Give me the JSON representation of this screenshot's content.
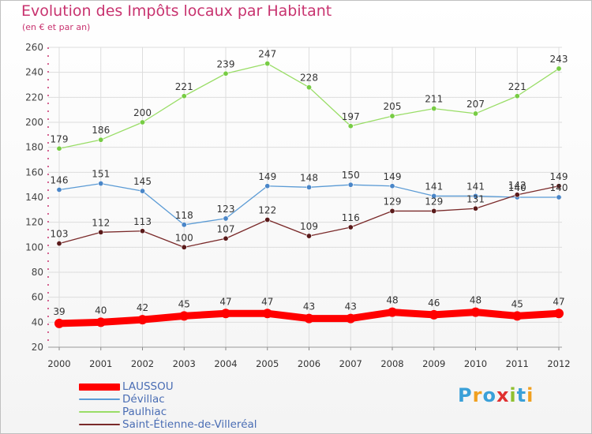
{
  "header": {
    "title": "Evolution des Impôts locaux par Habitant",
    "subtitle": "(en € et par an)"
  },
  "logo": {
    "letters": [
      "P",
      "r",
      "o",
      "x",
      "i",
      "t",
      "i"
    ],
    "colors": [
      "#3aa0d8",
      "#f0a020",
      "#3aa0d8",
      "#e03030",
      "#90c030",
      "#3aa0d8",
      "#f0a020"
    ]
  },
  "colors": {
    "title": "#c8336f",
    "axis": "#c8336f",
    "grid": "#dddddd",
    "legend_text": "#4a6db4"
  },
  "chart_data": {
    "type": "line",
    "title": "Evolution des Impôts locaux par Habitant",
    "subtitle": "(en € et par an)",
    "xlabel": "",
    "ylabel": "",
    "x": [
      "2000",
      "2001",
      "2002",
      "2003",
      "2004",
      "2005",
      "2006",
      "2007",
      "2008",
      "2009",
      "2010",
      "2011",
      "2012"
    ],
    "ylim": [
      20,
      260
    ],
    "yticks": [
      20,
      40,
      60,
      80,
      100,
      120,
      140,
      160,
      180,
      200,
      220,
      240,
      260
    ],
    "grid": true,
    "legend_position": "bottom-left",
    "series": [
      {
        "name": "LAUSSOU",
        "values": [
          39,
          40,
          42,
          45,
          47,
          47,
          43,
          43,
          48,
          46,
          48,
          45,
          47
        ],
        "color": "#ff0000",
        "marker_color": "#ff0000",
        "emphasis": "thick"
      },
      {
        "name": "Dévillac",
        "values": [
          146,
          151,
          145,
          118,
          123,
          149,
          148,
          150,
          149,
          141,
          141,
          140,
          140
        ],
        "color": "#5b9bd5",
        "marker_color": "#4a86c8",
        "emphasis": "normal"
      },
      {
        "name": "Paulhiac",
        "values": [
          179,
          186,
          200,
          221,
          239,
          247,
          228,
          197,
          205,
          211,
          207,
          221,
          243
        ],
        "color": "#99dd66",
        "marker_color": "#77cc44",
        "emphasis": "normal"
      },
      {
        "name": "Saint-Étienne-de-Villeréal",
        "values": [
          103,
          112,
          113,
          100,
          107,
          122,
          109,
          116,
          129,
          129,
          131,
          142,
          149
        ],
        "color": "#7a2a2a",
        "marker_color": "#5a1a1a",
        "emphasis": "normal"
      }
    ]
  }
}
